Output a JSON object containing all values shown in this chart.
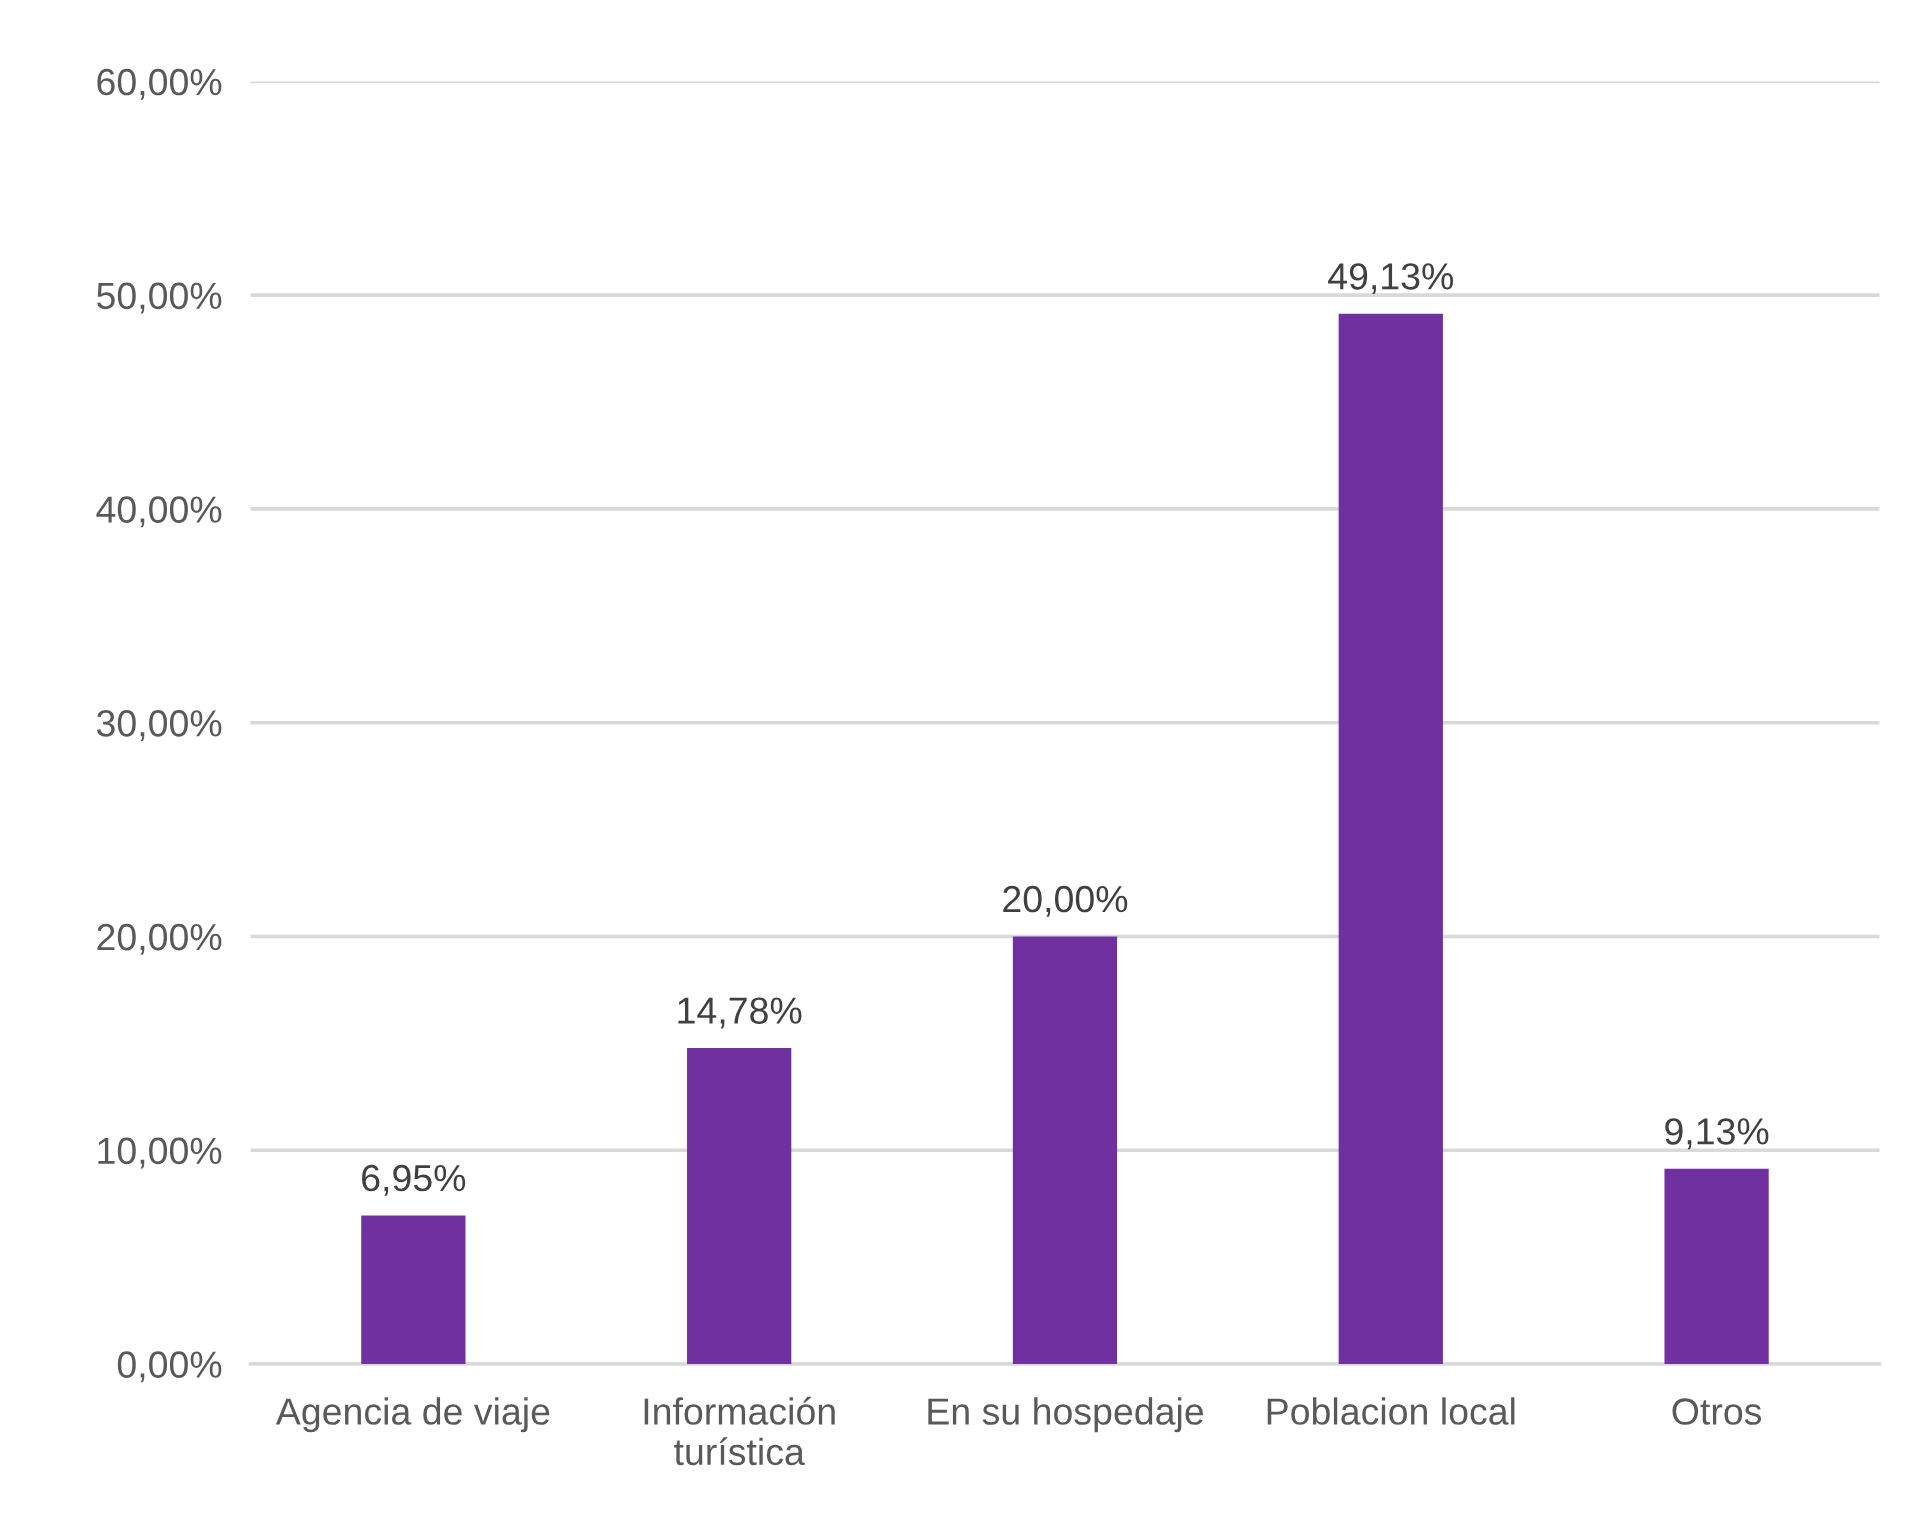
{
  "chart_data": {
    "type": "bar",
    "categories": [
      "Agencia de viaje",
      "Información\nturística",
      "En su hospedaje",
      "Poblacion local",
      "Otros"
    ],
    "values": [
      6.95,
      14.78,
      20.0,
      49.13,
      9.13
    ],
    "value_labels": [
      "6,95%",
      "14,78%",
      "20,00%",
      "49,13%",
      "9,13%"
    ],
    "color": "#7030a0",
    "ylim": [
      0,
      60
    ],
    "yticks": [
      {
        "value": 0,
        "label": "0,00%"
      },
      {
        "value": 10,
        "label": "10,00%"
      },
      {
        "value": 20,
        "label": "20,00%"
      },
      {
        "value": 30,
        "label": "30,00%"
      },
      {
        "value": 40,
        "label": "40,00%"
      },
      {
        "value": 50,
        "label": "50,00%"
      },
      {
        "value": 60,
        "label": "60,00%"
      }
    ],
    "grid": "y",
    "legend": false
  }
}
